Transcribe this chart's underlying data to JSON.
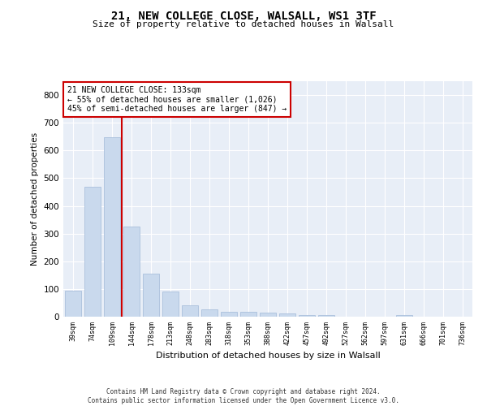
{
  "title_line1": "21, NEW COLLEGE CLOSE, WALSALL, WS1 3TF",
  "title_line2": "Size of property relative to detached houses in Walsall",
  "xlabel": "Distribution of detached houses by size in Walsall",
  "ylabel": "Number of detached properties",
  "categories": [
    "39sqm",
    "74sqm",
    "109sqm",
    "144sqm",
    "178sqm",
    "213sqm",
    "248sqm",
    "283sqm",
    "318sqm",
    "353sqm",
    "388sqm",
    "422sqm",
    "457sqm",
    "492sqm",
    "527sqm",
    "562sqm",
    "597sqm",
    "631sqm",
    "666sqm",
    "701sqm",
    "736sqm"
  ],
  "values": [
    95,
    468,
    648,
    325,
    155,
    92,
    42,
    27,
    19,
    17,
    16,
    12,
    7,
    5,
    0,
    0,
    0,
    7,
    0,
    0,
    0
  ],
  "bar_color": "#c9d9ed",
  "bar_edge_color": "#a0b8d8",
  "vline_x": 2.5,
  "vline_color": "#cc0000",
  "annotation_text": "21 NEW COLLEGE CLOSE: 133sqm\n← 55% of detached houses are smaller (1,026)\n45% of semi-detached houses are larger (847) →",
  "annotation_box_color": "#ffffff",
  "annotation_box_edge_color": "#cc0000",
  "ylim": [
    0,
    850
  ],
  "yticks": [
    0,
    100,
    200,
    300,
    400,
    500,
    600,
    700,
    800
  ],
  "background_color": "#e8eef7",
  "footer_line1": "Contains HM Land Registry data © Crown copyright and database right 2024.",
  "footer_line2": "Contains public sector information licensed under the Open Government Licence v3.0."
}
